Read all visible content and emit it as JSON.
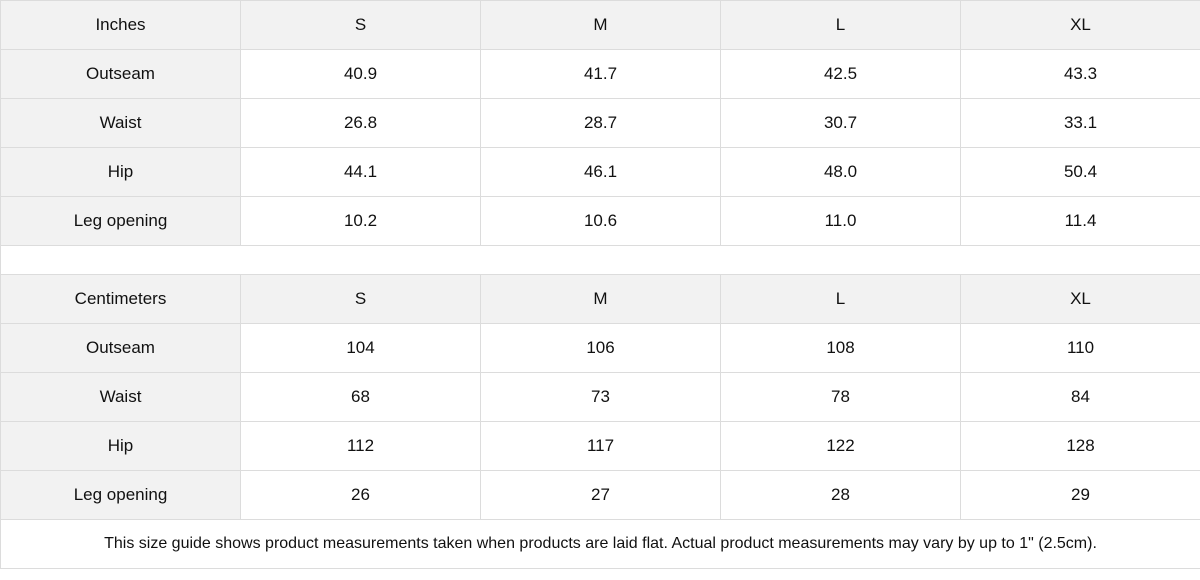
{
  "tables": [
    {
      "unit": "Inches",
      "sizes": [
        "S",
        "M",
        "L",
        "XL"
      ],
      "rows": [
        {
          "label": "Outseam",
          "values": [
            "40.9",
            "41.7",
            "42.5",
            "43.3"
          ]
        },
        {
          "label": "Waist",
          "values": [
            "26.8",
            "28.7",
            "30.7",
            "33.1"
          ]
        },
        {
          "label": "Hip",
          "values": [
            "44.1",
            "46.1",
            "48.0",
            "50.4"
          ]
        },
        {
          "label": "Leg opening",
          "values": [
            "10.2",
            "10.6",
            "11.0",
            "11.4"
          ]
        }
      ]
    },
    {
      "unit": "Centimeters",
      "sizes": [
        "S",
        "M",
        "L",
        "XL"
      ],
      "rows": [
        {
          "label": "Outseam",
          "values": [
            "104",
            "106",
            "108",
            "110"
          ]
        },
        {
          "label": "Waist",
          "values": [
            "68",
            "73",
            "78",
            "84"
          ]
        },
        {
          "label": "Hip",
          "values": [
            "112",
            "117",
            "122",
            "128"
          ]
        },
        {
          "label": "Leg opening",
          "values": [
            "26",
            "27",
            "28",
            "29"
          ]
        }
      ]
    }
  ],
  "footnote": "This size guide shows product measurements taken when products are laid flat.  Actual product measurements may vary by up to 1\" (2.5cm).",
  "colors": {
    "header_bg": "#f2f2f2",
    "border": "#dcdcdc"
  }
}
